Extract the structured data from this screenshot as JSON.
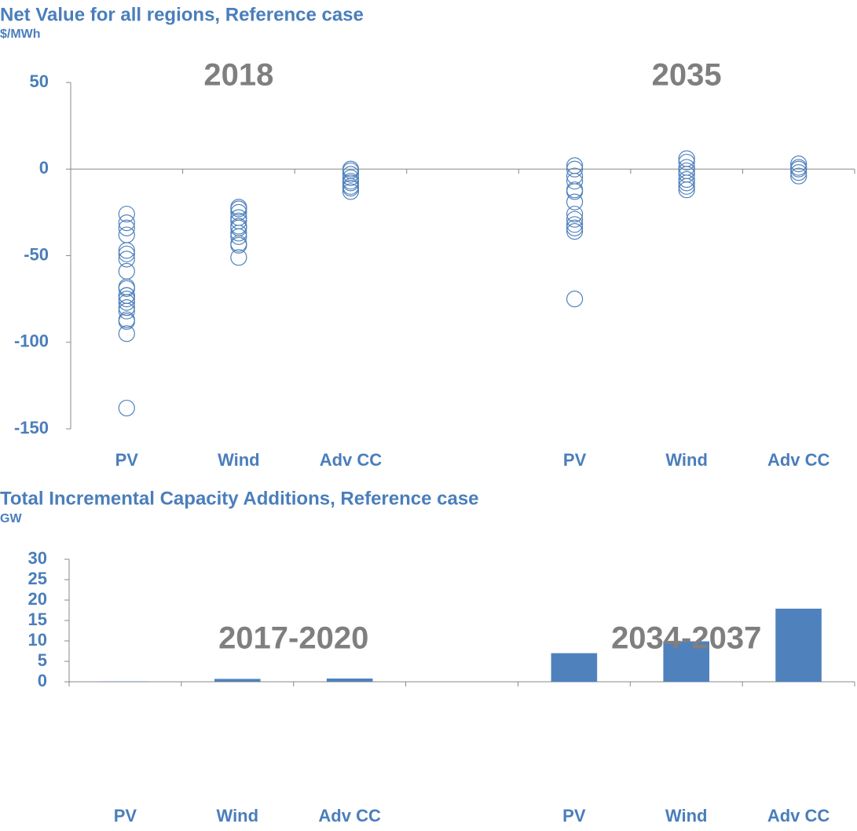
{
  "chart_data": [
    {
      "type": "strip",
      "title": "Net Value for all regions, Reference case",
      "subtitle": "$/MWh",
      "annotations": [
        "2018",
        "2035"
      ],
      "categories": [
        "PV",
        "Wind",
        "Adv CC",
        null,
        "PV",
        "Wind",
        "Adv CC"
      ],
      "values": [
        [
          -26,
          -31,
          -34,
          -38,
          -47,
          -49,
          -52,
          -59,
          -68,
          -69,
          -73,
          -73,
          -75,
          -77,
          -80,
          -82,
          -87,
          -88,
          -95,
          -138
        ],
        [
          -22,
          -23,
          -25,
          -28,
          -30,
          -33,
          -34,
          -37,
          -39,
          -43,
          -44,
          -51
        ],
        [
          0,
          -1,
          -3,
          -5,
          -7,
          -8,
          -10,
          -11,
          -13
        ],
        [],
        [
          2,
          0,
          -4,
          -7,
          -12,
          -13,
          -19,
          -26,
          -29,
          -32,
          -34,
          -36,
          -75
        ],
        [
          6,
          4,
          1,
          -1,
          -3,
          -6,
          -8,
          -10,
          -12
        ],
        [
          3,
          1,
          0,
          -2,
          -4
        ]
      ],
      "color": "#4f81bd",
      "ylim": [
        -150,
        50
      ],
      "yticks": [
        -150,
        -100,
        -50,
        0,
        50
      ]
    },
    {
      "type": "bar",
      "title": "Total Incremental Capacity Additions, Reference case",
      "subtitle": "GW",
      "annotations": [
        "2017-2020",
        "2034-2037"
      ],
      "categories": [
        "PV",
        "Wind",
        "Adv CC",
        null,
        "PV",
        "Wind",
        "Adv CC"
      ],
      "values": [
        0.1,
        0.7,
        0.8,
        null,
        7.0,
        9.9,
        17.9
      ],
      "color": "#4f81bd",
      "ylim": [
        0,
        30
      ],
      "yticks": [
        0,
        5,
        10,
        15,
        20,
        25,
        30
      ]
    }
  ]
}
